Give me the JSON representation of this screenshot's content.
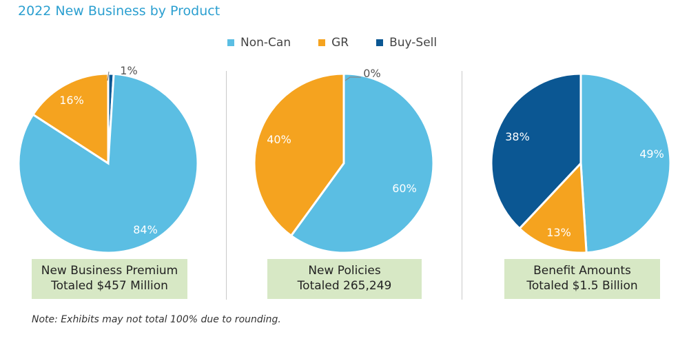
{
  "title": "2022 New Business by Product",
  "legend": [
    {
      "label": "Non-Can",
      "color": "#5bbee3"
    },
    {
      "label": "GR",
      "color": "#f5a31f"
    },
    {
      "label": "Buy-Sell",
      "color": "#0b5793"
    }
  ],
  "note": "Note: Exhibits may not total 100% due to rounding.",
  "chart_data": [
    {
      "type": "pie",
      "title": "New Business Premium",
      "subtitle": "Totaled $457 Million",
      "slices": [
        {
          "label": "Non-Can",
          "value": 84,
          "text": "84%",
          "color": "#5bbee3"
        },
        {
          "label": "GR",
          "value": 16,
          "text": "16%",
          "color": "#f5a31f"
        },
        {
          "label": "Buy-Sell",
          "value": 1,
          "text": "1%",
          "color": "#0b5793"
        }
      ]
    },
    {
      "type": "pie",
      "title": "New Policies",
      "subtitle": "Totaled 265,249",
      "slices": [
        {
          "label": "Non-Can",
          "value": 60,
          "text": "60%",
          "color": "#5bbee3"
        },
        {
          "label": "GR",
          "value": 40,
          "text": "40%",
          "color": "#f5a31f"
        },
        {
          "label": "Buy-Sell",
          "value": 0,
          "text": "0%",
          "color": "#0b5793"
        }
      ]
    },
    {
      "type": "pie",
      "title": "Benefit Amounts",
      "subtitle": "Totaled $1.5 Billion",
      "slices": [
        {
          "label": "Non-Can",
          "value": 49,
          "text": "49%",
          "color": "#5bbee3"
        },
        {
          "label": "GR",
          "value": 13,
          "text": "13%",
          "color": "#f5a31f"
        },
        {
          "label": "Buy-Sell",
          "value": 38,
          "text": "38%",
          "color": "#0b5793"
        }
      ]
    }
  ]
}
